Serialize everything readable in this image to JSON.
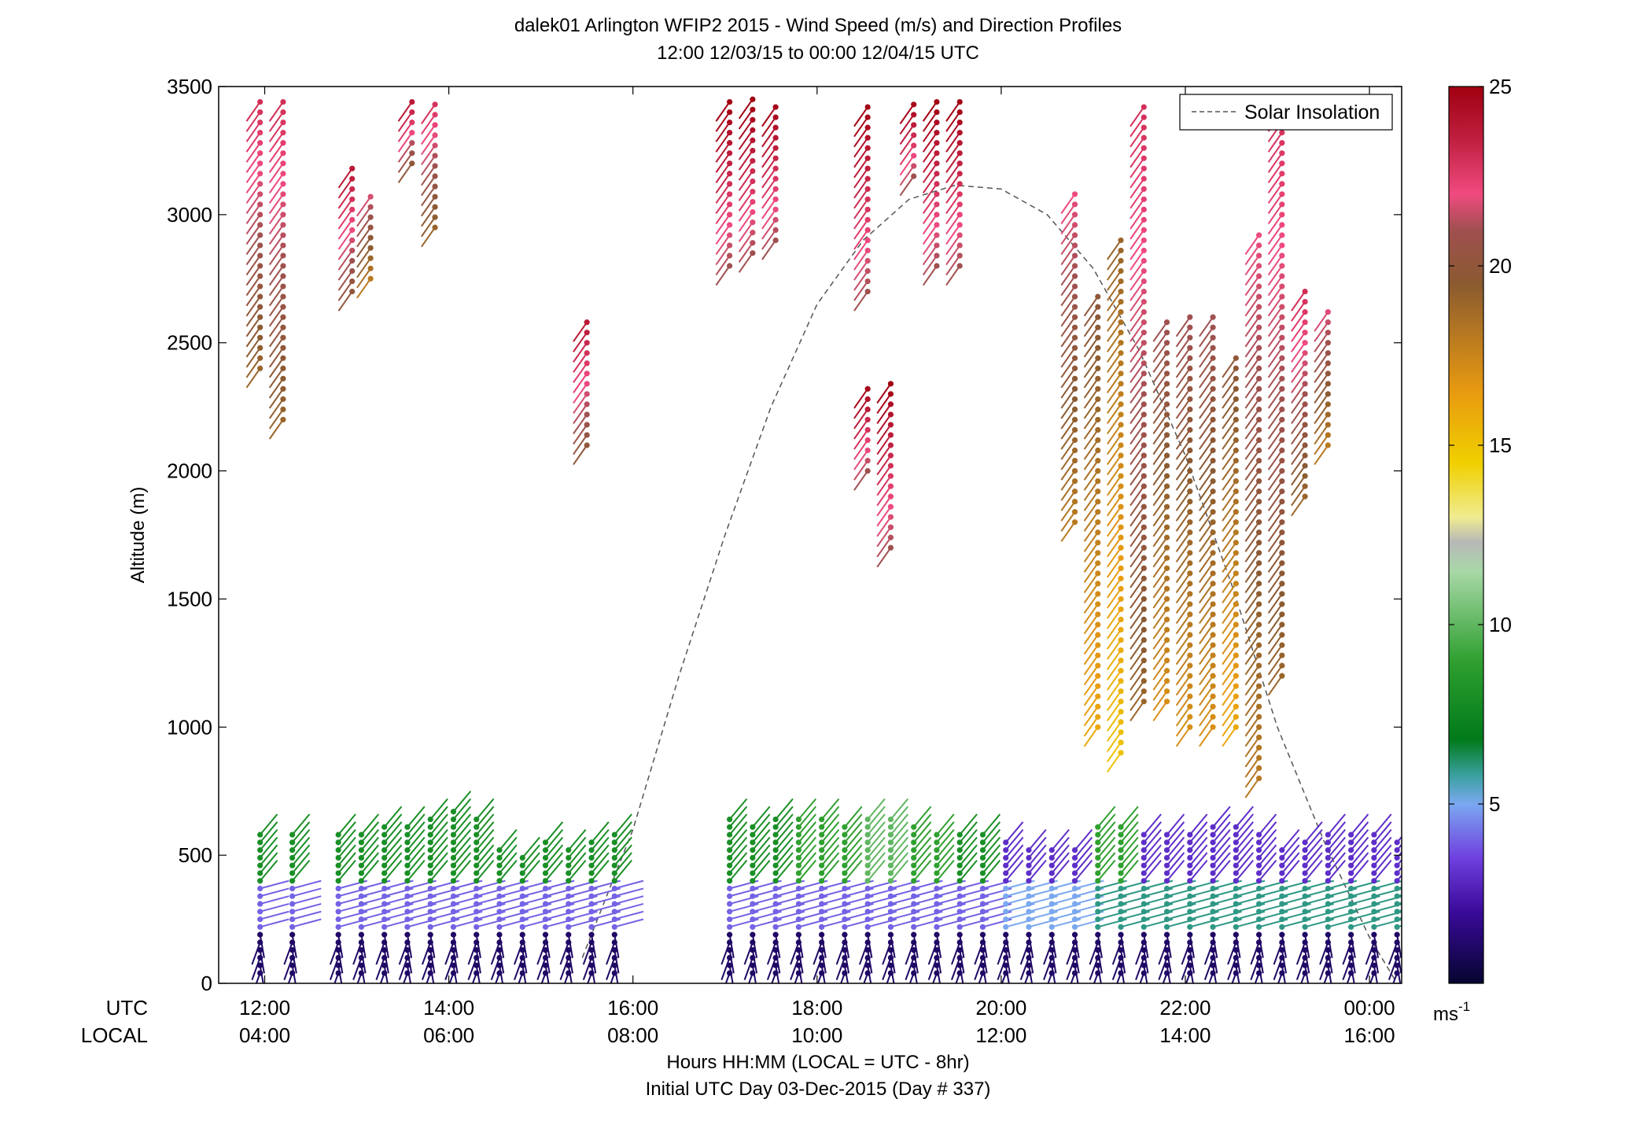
{
  "chart_data": {
    "type": "scatter",
    "title": "dalek01 Arlington WFIP2 2015 - Wind Speed (m/s) and Direction Profiles",
    "subtitle": "12:00 12/03/15 to 00:00 12/04/15  UTC",
    "xlabel": "Hours HH:MM  (LOCAL = UTC - 8hr)",
    "xlabel2": "Initial UTC Day 03-Dec-2015 (Day # 337)",
    "ylabel": "Altitude (m)",
    "ylim": [
      0,
      3500
    ],
    "yticks": [
      0,
      500,
      1000,
      1500,
      2000,
      2500,
      3000,
      3500
    ],
    "xlim": [
      11.5,
      24.35
    ],
    "xrow_labels": [
      "UTC",
      "LOCAL"
    ],
    "xticks": [
      {
        "x": 12,
        "utc": "12:00",
        "local": "04:00"
      },
      {
        "x": 14,
        "utc": "14:00",
        "local": "06:00"
      },
      {
        "x": 16,
        "utc": "16:00",
        "local": "08:00"
      },
      {
        "x": 18,
        "utc": "18:00",
        "local": "10:00"
      },
      {
        "x": 20,
        "utc": "20:00",
        "local": "12:00"
      },
      {
        "x": 22,
        "utc": "22:00",
        "local": "14:00"
      },
      {
        "x": 24,
        "utc": "00:00",
        "local": "16:00"
      }
    ],
    "colorbar": {
      "min": 0,
      "max": 25,
      "ticks": [
        5,
        10,
        15,
        20,
        25
      ],
      "unit": "ms",
      "unit_exp": "-1",
      "colors": [
        {
          "v": 0,
          "c": "#050530"
        },
        {
          "v": 2,
          "c": "#3a0a9a"
        },
        {
          "v": 3.5,
          "c": "#7040e0"
        },
        {
          "v": 5,
          "c": "#7aa8f0"
        },
        {
          "v": 5.8,
          "c": "#3aa0a0"
        },
        {
          "v": 6.8,
          "c": "#007a1a"
        },
        {
          "v": 9,
          "c": "#30a030"
        },
        {
          "v": 11.5,
          "c": "#a8d8a8"
        },
        {
          "v": 12.3,
          "c": "#b8b8b8"
        },
        {
          "v": 13,
          "c": "#f0ec90"
        },
        {
          "v": 14.5,
          "c": "#f0d000"
        },
        {
          "v": 16.5,
          "c": "#e89a10"
        },
        {
          "v": 19.5,
          "c": "#8a5a30"
        },
        {
          "v": 21,
          "c": "#a05050"
        },
        {
          "v": 22,
          "c": "#f04a80"
        },
        {
          "v": 23.5,
          "c": "#c02040"
        },
        {
          "v": 25,
          "c": "#a00010"
        }
      ]
    },
    "legend": {
      "position": "top-right",
      "entries": [
        "Solar Insolation"
      ]
    },
    "solar_insolation": {
      "style": "dashed",
      "x": [
        15.45,
        16.0,
        16.5,
        17.0,
        17.5,
        18.0,
        18.5,
        19.0,
        19.5,
        20.0,
        20.5,
        21.0,
        21.5,
        22.0,
        22.5,
        23.0,
        23.5,
        24.0,
        24.3
      ],
      "y": [
        100,
        600,
        1200,
        1750,
        2250,
        2650,
        2900,
        3060,
        3115,
        3100,
        3000,
        2790,
        2470,
        2060,
        1560,
        1000,
        560,
        180,
        0
      ]
    },
    "profiles": {
      "times": [
        11.95,
        12.3,
        12.8,
        13.05,
        13.3,
        13.55,
        13.8,
        14.05,
        14.3,
        14.55,
        14.8,
        15.05,
        15.3,
        15.55,
        15.8,
        16.05,
        16.8,
        17.05,
        17.3,
        17.55,
        17.8,
        18.05,
        18.3,
        18.55,
        18.8,
        19.05,
        19.3,
        19.55,
        19.8,
        20.05,
        20.3,
        20.55,
        20.8,
        21.05,
        21.3,
        21.55,
        21.8,
        22.05,
        22.3,
        22.55,
        22.8,
        23.05,
        23.3,
        23.55,
        23.8,
        24.05,
        24.3
      ],
      "low_top_m": [
        590,
        580,
        590,
        600,
        610,
        630,
        650,
        680,
        660,
        540,
        500,
        560,
        540,
        560,
        580,
        0,
        0,
        640,
        630,
        650,
        640,
        640,
        630,
        640,
        660,
        620,
        600,
        590,
        580,
        560,
        540,
        520,
        520,
        620,
        610,
        600,
        590,
        600,
        610,
        620,
        600,
        540,
        560,
        580,
        600,
        580,
        560
      ],
      "low_speed_ms": [
        8,
        8,
        8,
        8,
        8,
        8,
        8,
        8,
        8,
        8,
        8,
        8,
        8,
        8,
        8,
        0,
        0,
        8,
        8,
        8,
        9,
        9,
        9,
        10,
        10,
        9,
        9,
        8,
        8,
        3,
        3,
        3,
        3,
        9,
        9,
        3,
        3,
        3,
        3,
        3,
        3,
        3,
        3,
        3,
        3,
        3,
        3
      ],
      "jet_speed_ms": [
        4,
        4,
        4,
        4,
        4,
        4,
        4,
        4,
        4,
        4,
        4,
        4,
        4,
        4,
        4,
        0,
        0,
        4,
        4,
        4,
        4,
        4,
        4,
        4,
        4,
        4,
        4,
        4,
        4,
        5,
        5,
        5,
        5,
        6,
        6,
        6,
        6,
        6,
        6,
        6,
        6,
        6,
        6,
        6,
        6,
        6,
        6
      ],
      "upper": [
        {
          "t": 11.95,
          "from": 2400,
          "to": 3450,
          "speed": 23
        },
        {
          "t": 12.2,
          "from": 2200,
          "to": 3450,
          "speed": 23
        },
        {
          "t": 12.95,
          "from": 2700,
          "to": 3200,
          "speed": 24
        },
        {
          "t": 13.15,
          "from": 2750,
          "to": 3100,
          "speed": 22
        },
        {
          "t": 13.6,
          "from": 3200,
          "to": 3450,
          "speed": 24
        },
        {
          "t": 13.85,
          "from": 2950,
          "to": 3450,
          "speed": 23
        },
        {
          "t": 15.5,
          "from": 2100,
          "to": 2600,
          "speed": 24
        },
        {
          "t": 17.05,
          "from": 2800,
          "to": 3450,
          "speed": 25
        },
        {
          "t": 17.3,
          "from": 2850,
          "to": 3450,
          "speed": 25
        },
        {
          "t": 17.55,
          "from": 2900,
          "to": 3450,
          "speed": 25
        },
        {
          "t": 18.55,
          "from": 2700,
          "to": 3450,
          "speed": 25
        },
        {
          "t": 18.55,
          "from": 2000,
          "to": 2350,
          "speed": 25
        },
        {
          "t": 18.8,
          "from": 1700,
          "to": 2350,
          "speed": 25
        },
        {
          "t": 19.05,
          "from": 3150,
          "to": 3450,
          "speed": 25
        },
        {
          "t": 19.3,
          "from": 2800,
          "to": 3450,
          "speed": 25
        },
        {
          "t": 19.55,
          "from": 2800,
          "to": 3450,
          "speed": 25
        },
        {
          "t": 20.8,
          "from": 1800,
          "to": 3100,
          "speed": 22
        },
        {
          "t": 21.05,
          "from": 1000,
          "to": 2700,
          "speed": 20
        },
        {
          "t": 21.3,
          "from": 900,
          "to": 2900,
          "speed": 19
        },
        {
          "t": 21.55,
          "from": 1100,
          "to": 3450,
          "speed": 23
        },
        {
          "t": 21.8,
          "from": 1100,
          "to": 2600,
          "speed": 21
        },
        {
          "t": 22.05,
          "from": 1000,
          "to": 2600,
          "speed": 21
        },
        {
          "t": 22.3,
          "from": 1000,
          "to": 2600,
          "speed": 21
        },
        {
          "t": 22.55,
          "from": 1000,
          "to": 2450,
          "speed": 20
        },
        {
          "t": 22.8,
          "from": 800,
          "to": 2950,
          "speed": 22
        },
        {
          "t": 23.05,
          "from": 1200,
          "to": 3450,
          "speed": 23
        },
        {
          "t": 23.3,
          "from": 1900,
          "to": 2700,
          "speed": 23
        },
        {
          "t": 23.55,
          "from": 2100,
          "to": 2650,
          "speed": 22
        }
      ]
    }
  }
}
